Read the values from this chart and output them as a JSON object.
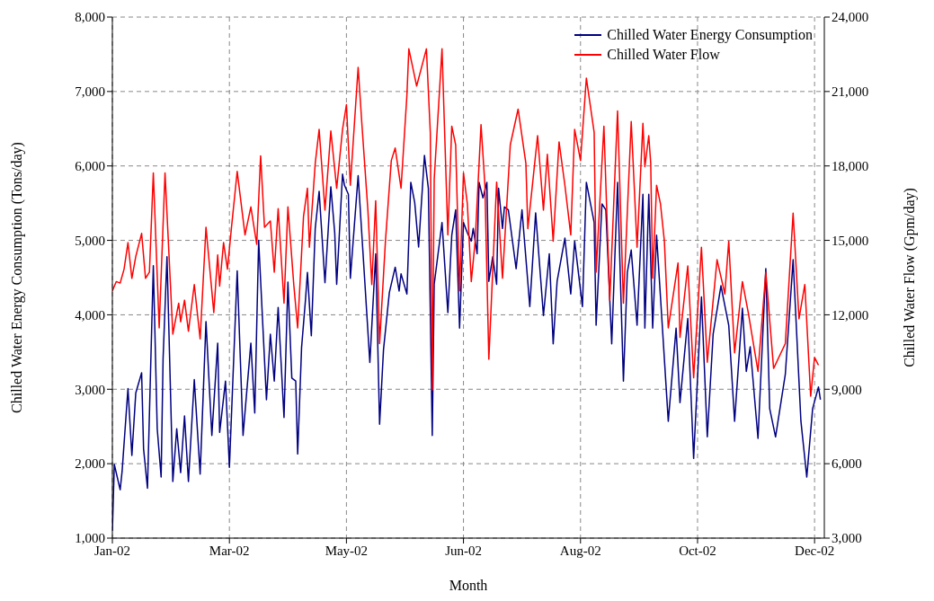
{
  "chart_data": {
    "type": "line",
    "xlabel": "Month",
    "ylabel": "Chilled Water Energy Consumption (Tons/day)",
    "y2label": "Chilled Water Flow (Gpm/day)",
    "xlim": [
      "2002-01-01",
      "2003-01-01"
    ],
    "xticks": [
      {
        "value": "2002-01-01",
        "label": "Jan-02"
      },
      {
        "value": "2002-03-02",
        "label": "Mar-02"
      },
      {
        "value": "2002-05-01",
        "label": "May-02"
      },
      {
        "value": "2002-06-30",
        "label": "Jun-02"
      },
      {
        "value": "2002-08-29",
        "label": "Aug-02"
      },
      {
        "value": "2002-10-28",
        "label": "Oct-02"
      },
      {
        "value": "2002-12-27",
        "label": "Dec-02"
      }
    ],
    "ylim": [
      1000,
      8000
    ],
    "yticks": [
      {
        "value": 1000,
        "label": "1,000"
      },
      {
        "value": 2000,
        "label": "2,000"
      },
      {
        "value": 3000,
        "label": "3,000"
      },
      {
        "value": 4000,
        "label": "4,000"
      },
      {
        "value": 5000,
        "label": "5,000"
      },
      {
        "value": 6000,
        "label": "6,000"
      },
      {
        "value": 7000,
        "label": "7,000"
      },
      {
        "value": 8000,
        "label": "8,000"
      }
    ],
    "y2lim": [
      3000,
      24000
    ],
    "y2ticks": [
      {
        "value": 3000,
        "label": "3,000"
      },
      {
        "value": 6000,
        "label": "6,000"
      },
      {
        "value": 9000,
        "label": "9,000"
      },
      {
        "value": 12000,
        "label": "12,000"
      },
      {
        "value": 15000,
        "label": "15,000"
      },
      {
        "value": 18000,
        "label": "18,000"
      },
      {
        "value": 21000,
        "label": "21,000"
      },
      {
        "value": 24000,
        "label": "24,000"
      }
    ],
    "grid": true,
    "legend": "top right",
    "series": [
      {
        "name": "Chilled Water Energy Consumption",
        "color": "#000080",
        "x": [
          "2002-01-01",
          "2002-01-02",
          "2002-01-05",
          "2002-01-06",
          "2002-01-09",
          "2002-01-11",
          "2002-01-13",
          "2002-01-16",
          "2002-01-17",
          "2002-01-19",
          "2002-01-22",
          "2002-01-24",
          "2002-01-26",
          "2002-01-27",
          "2002-01-29",
          "2002-02-01",
          "2002-02-03",
          "2002-02-05",
          "2002-02-07",
          "2002-02-09",
          "2002-02-12",
          "2002-02-15",
          "2002-02-18",
          "2002-02-21",
          "2002-02-24",
          "2002-02-25",
          "2002-02-28",
          "2002-03-02",
          "2002-03-06",
          "2002-03-09",
          "2002-03-13",
          "2002-03-15",
          "2002-03-17",
          "2002-03-21",
          "2002-03-23",
          "2002-03-25",
          "2002-03-27",
          "2002-03-30",
          "2002-04-01",
          "2002-04-03",
          "2002-04-05",
          "2002-04-06",
          "2002-04-08",
          "2002-04-10",
          "2002-04-11",
          "2002-04-13",
          "2002-04-15",
          "2002-04-17",
          "2002-04-20",
          "2002-04-23",
          "2002-04-25",
          "2002-04-26",
          "2002-04-29",
          "2002-04-30",
          "2002-05-02",
          "2002-05-03",
          "2002-05-07",
          "2002-05-10",
          "2002-05-13",
          "2002-05-16",
          "2002-05-18",
          "2002-05-20",
          "2002-05-23",
          "2002-05-26",
          "2002-05-28",
          "2002-05-29",
          "2002-06-01",
          "2002-06-03",
          "2002-06-05",
          "2002-06-07",
          "2002-06-10",
          "2002-06-12",
          "2002-06-14",
          "2002-06-15",
          "2002-06-19",
          "2002-06-22",
          "2002-06-24",
          "2002-06-26",
          "2002-06-28",
          "2002-06-30",
          "2002-07-02",
          "2002-07-04",
          "2002-07-05",
          "2002-07-07",
          "2002-07-08",
          "2002-07-10",
          "2002-07-12",
          "2002-07-13",
          "2002-07-15",
          "2002-07-17",
          "2002-07-18",
          "2002-07-20",
          "2002-07-21",
          "2002-07-23",
          "2002-07-27",
          "2002-07-30",
          "2002-08-03",
          "2002-08-06",
          "2002-08-10",
          "2002-08-13",
          "2002-08-15",
          "2002-08-17",
          "2002-08-21",
          "2002-08-24",
          "2002-08-26",
          "2002-08-30",
          "2002-09-01",
          "2002-09-05",
          "2002-09-06",
          "2002-09-09",
          "2002-09-11",
          "2002-09-14",
          "2002-09-17",
          "2002-09-20",
          "2002-09-22",
          "2002-09-24",
          "2002-09-27",
          "2002-09-30",
          "2002-10-01",
          "2002-10-03",
          "2002-10-05",
          "2002-10-07",
          "2002-10-09",
          "2002-10-13",
          "2002-10-17",
          "2002-10-19",
          "2002-10-23",
          "2002-10-26",
          "2002-10-30",
          "2002-11-02",
          "2002-11-05",
          "2002-11-09",
          "2002-11-13",
          "2002-11-16",
          "2002-11-20",
          "2002-11-22",
          "2002-11-24",
          "2002-11-28",
          "2002-12-02",
          "2002-12-04",
          "2002-12-07",
          "2002-12-12",
          "2002-12-16",
          "2002-12-20",
          "2002-12-23",
          "2002-12-26",
          "2002-12-29",
          "2002-12-30"
        ],
        "values": [
          1100,
          1990,
          1650,
          1900,
          3010,
          2110,
          2950,
          3220,
          2200,
          1670,
          4660,
          2470,
          1820,
          3410,
          4780,
          1760,
          2470,
          1880,
          2640,
          1760,
          3130,
          1860,
          3910,
          2380,
          3620,
          2420,
          3110,
          1950,
          4590,
          2380,
          3620,
          2680,
          5000,
          2860,
          3740,
          3110,
          4100,
          2620,
          4440,
          3150,
          3110,
          2130,
          3560,
          4200,
          4570,
          3720,
          5160,
          5660,
          4430,
          5720,
          5100,
          4410,
          5890,
          5740,
          5620,
          4490,
          5870,
          4620,
          3360,
          4820,
          2530,
          3530,
          4300,
          4640,
          4320,
          4550,
          4280,
          5780,
          5510,
          4910,
          6140,
          5700,
          2380,
          4410,
          5240,
          4030,
          5070,
          5410,
          3820,
          5240,
          5100,
          4990,
          5160,
          4820,
          5780,
          5570,
          5780,
          4450,
          4780,
          4410,
          5700,
          5160,
          5450,
          5410,
          4620,
          5410,
          4110,
          5370,
          3990,
          4820,
          3610,
          4450,
          5030,
          4280,
          4990,
          4110,
          5780,
          5240,
          3860,
          5490,
          5410,
          3610,
          5780,
          3110,
          4570,
          4870,
          3860,
          5620,
          3820,
          5620,
          3820,
          5070,
          4240,
          2570,
          3820,
          2820,
          3950,
          2070,
          4240,
          2360,
          3740,
          4390,
          3860,
          2570,
          4090,
          3240,
          3570,
          2340,
          4620,
          2740,
          2360,
          3200,
          4740,
          2570,
          1820,
          2740,
          3030,
          2860
        ]
      },
      {
        "name": "Chilled Water Flow",
        "color": "#ff0000",
        "axis": "y2",
        "x": [
          "2002-01-01",
          "2002-01-03",
          "2002-01-05",
          "2002-01-07",
          "2002-01-09",
          "2002-01-11",
          "2002-01-13",
          "2002-01-16",
          "2002-01-18",
          "2002-01-20",
          "2002-01-22",
          "2002-01-25",
          "2002-01-28",
          "2002-02-01",
          "2002-02-04",
          "2002-02-05",
          "2002-02-07",
          "2002-02-09",
          "2002-02-12",
          "2002-02-15",
          "2002-02-18",
          "2002-02-22",
          "2002-02-24",
          "2002-02-25",
          "2002-02-27",
          "2002-03-01",
          "2002-03-03",
          "2002-03-06",
          "2002-03-10",
          "2002-03-13",
          "2002-03-16",
          "2002-03-18",
          "2002-03-20",
          "2002-03-23",
          "2002-03-25",
          "2002-03-27",
          "2002-03-30",
          "2002-04-01",
          "2002-04-04",
          "2002-04-06",
          "2002-04-09",
          "2002-04-11",
          "2002-04-12",
          "2002-04-15",
          "2002-04-17",
          "2002-04-20",
          "2002-04-23",
          "2002-04-26",
          "2002-04-29",
          "2002-05-01",
          "2002-05-03",
          "2002-05-07",
          "2002-05-09",
          "2002-05-12",
          "2002-05-14",
          "2002-05-16",
          "2002-05-18",
          "2002-05-21",
          "2002-05-24",
          "2002-05-26",
          "2002-05-29",
          "2002-06-01",
          "2002-06-02",
          "2002-06-06",
          "2002-06-11",
          "2002-06-13",
          "2002-06-14",
          "2002-06-15",
          "2002-06-19",
          "2002-06-22",
          "2002-06-24",
          "2002-06-26",
          "2002-06-28",
          "2002-06-30",
          "2002-07-02",
          "2002-07-04",
          "2002-07-06",
          "2002-07-09",
          "2002-07-11",
          "2002-07-13",
          "2002-07-17",
          "2002-07-20",
          "2002-07-24",
          "2002-07-28",
          "2002-08-01",
          "2002-08-02",
          "2002-08-07",
          "2002-08-10",
          "2002-08-12",
          "2002-08-15",
          "2002-08-18",
          "2002-08-21",
          "2002-08-24",
          "2002-08-26",
          "2002-08-29",
          "2002-09-01",
          "2002-09-05",
          "2002-09-06",
          "2002-09-10",
          "2002-09-13",
          "2002-09-17",
          "2002-09-20",
          "2002-09-24",
          "2002-09-27",
          "2002-09-30",
          "2002-10-01",
          "2002-10-03",
          "2002-10-04",
          "2002-10-05",
          "2002-10-07",
          "2002-10-09",
          "2002-10-11",
          "2002-10-13",
          "2002-10-18",
          "2002-10-19",
          "2002-10-23",
          "2002-10-26",
          "2002-10-30",
          "2002-11-02",
          "2002-11-07",
          "2002-11-11",
          "2002-11-13",
          "2002-11-16",
          "2002-11-20",
          "2002-11-23",
          "2002-11-28",
          "2002-12-02",
          "2002-12-06",
          "2002-12-12",
          "2002-12-16",
          "2002-12-19",
          "2002-12-22",
          "2002-12-25",
          "2002-12-27",
          "2002-12-29"
        ],
        "values": [
          12970,
          13340,
          13280,
          13840,
          14910,
          13470,
          14350,
          15280,
          13470,
          13720,
          17720,
          11470,
          17720,
          11220,
          12470,
          11720,
          12590,
          11340,
          13220,
          11030,
          15530,
          12090,
          14410,
          13160,
          14910,
          13840,
          15470,
          17780,
          15220,
          16350,
          14840,
          18410,
          15530,
          15780,
          13720,
          16280,
          12470,
          16350,
          13220,
          11470,
          15970,
          17100,
          14720,
          18100,
          19470,
          16220,
          19410,
          17100,
          19470,
          20470,
          17220,
          21970,
          19600,
          16220,
          13220,
          16600,
          10840,
          14970,
          18220,
          18720,
          17100,
          20850,
          22720,
          21220,
          22720,
          19350,
          8970,
          17470,
          22720,
          15220,
          19600,
          18850,
          12970,
          17720,
          16470,
          13340,
          14970,
          19660,
          17220,
          10210,
          17350,
          13470,
          18850,
          20290,
          18100,
          15470,
          19220,
          16220,
          18470,
          14970,
          18970,
          17220,
          15220,
          19470,
          18220,
          21540,
          19350,
          13720,
          19600,
          12590,
          20220,
          12470,
          19790,
          14720,
          19720,
          17970,
          19220,
          18100,
          13470,
          17220,
          16470,
          14970,
          11470,
          14090,
          11090,
          13970,
          9460,
          14720,
          10090,
          14220,
          12840,
          14970,
          10470,
          13340,
          12090,
          9720,
          13720,
          9840,
          10840,
          16100,
          11840,
          13220,
          8720,
          10280,
          9970
        ]
      }
    ]
  }
}
